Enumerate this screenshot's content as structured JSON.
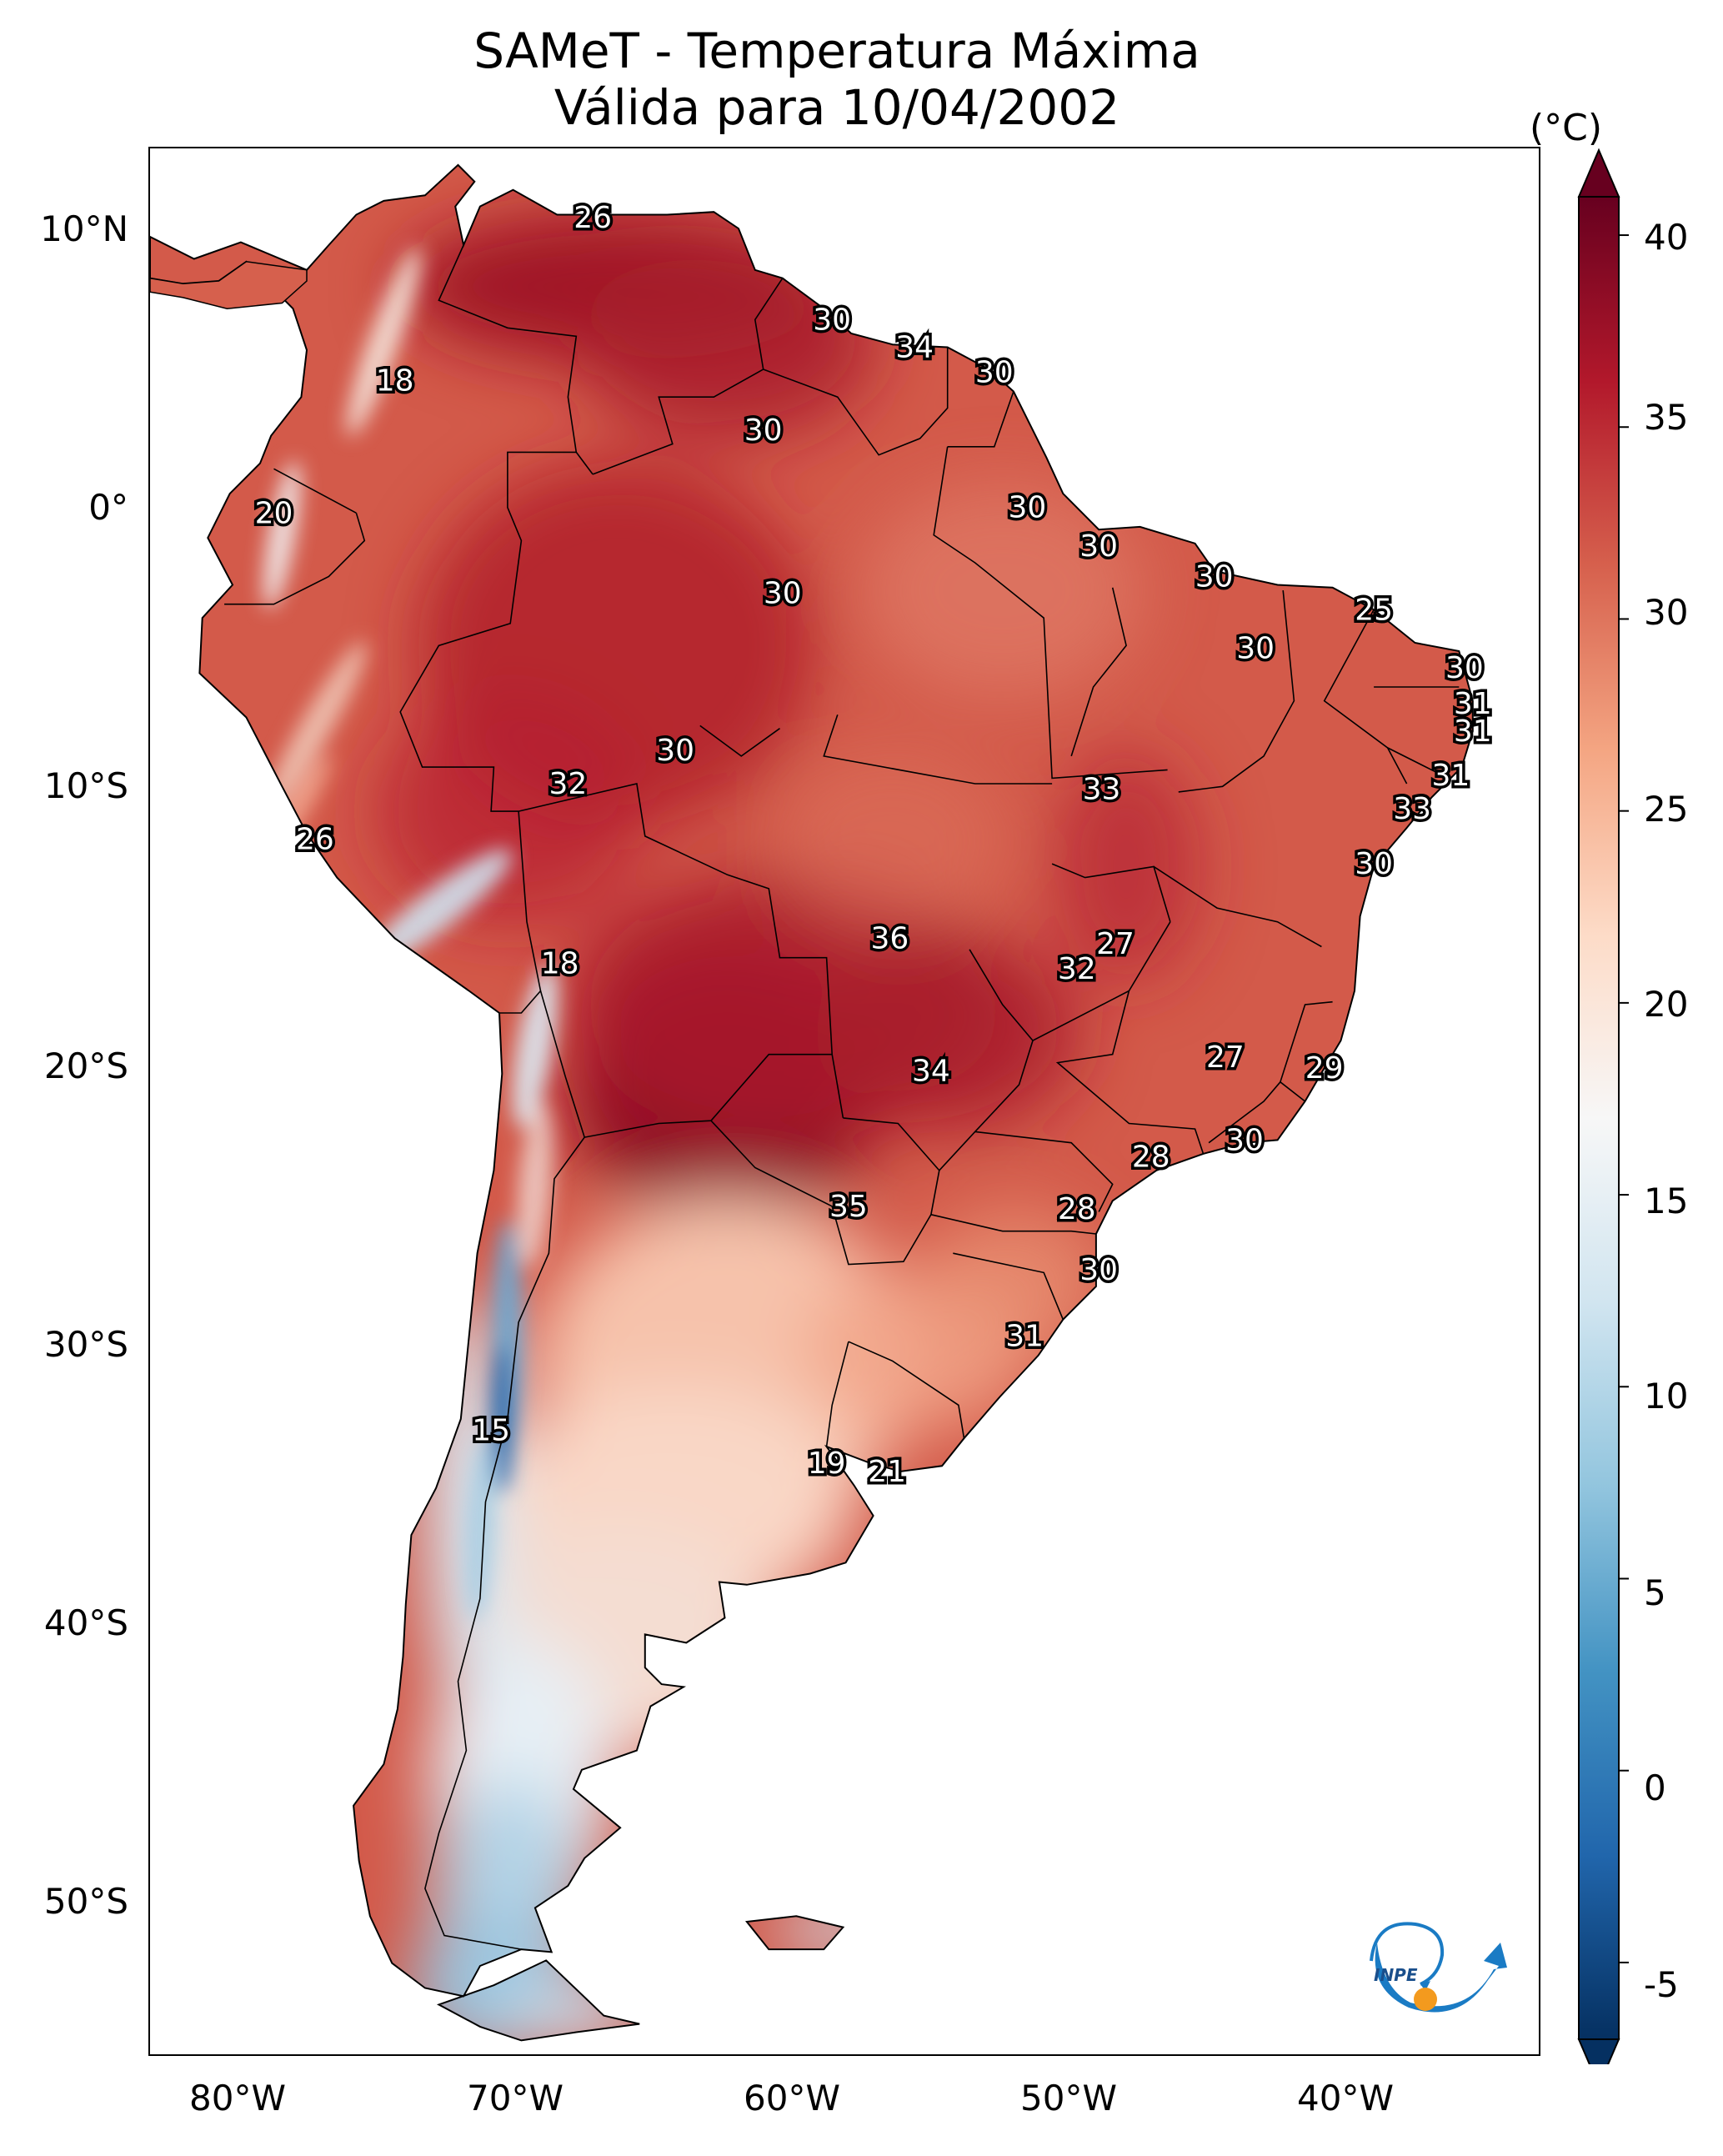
{
  "title": {
    "line1": "SAMeT - Temperatura Máxima",
    "line2": "Válida para 10/04/2002"
  },
  "axes": {
    "lat_ticks": [
      "10°N",
      "0°",
      "10°S",
      "20°S",
      "30°S",
      "40°S",
      "50°S"
    ],
    "lon_ticks": [
      "80°W",
      "70°W",
      "60°W",
      "50°W",
      "40°W"
    ]
  },
  "colorbar": {
    "unit": "(°C)",
    "ticks": [
      "40",
      "35",
      "30",
      "25",
      "20",
      "15",
      "10",
      "5",
      "0",
      "-5"
    ],
    "min": -7,
    "max": 41,
    "colormap": "RdBu_r",
    "colors": [
      "#053061",
      "#2166ac",
      "#4393c3",
      "#92c5de",
      "#d1e5f0",
      "#f7f7f7",
      "#fddbc7",
      "#f4a582",
      "#d6604d",
      "#b2182b",
      "#67001f"
    ]
  },
  "logo": {
    "text": "INPE",
    "arc_color": "#1a7bc4",
    "dot_color": "#f39a1e"
  },
  "city_labels": [
    {
      "value": "26",
      "lon": -66.9,
      "lat": 10.5
    },
    {
      "value": "30",
      "lon": -58.2,
      "lat": 6.8
    },
    {
      "value": "34",
      "lon": -55.2,
      "lat": 5.8
    },
    {
      "value": "30",
      "lon": -52.3,
      "lat": 4.9
    },
    {
      "value": "18",
      "lon": -74.1,
      "lat": 4.6
    },
    {
      "value": "30",
      "lon": -60.7,
      "lat": 2.8
    },
    {
      "value": "20",
      "lon": -78.5,
      "lat": -0.2
    },
    {
      "value": "30",
      "lon": -51.1,
      "lat": 0.0
    },
    {
      "value": "30",
      "lon": -48.5,
      "lat": -1.4
    },
    {
      "value": "30",
      "lon": -44.3,
      "lat": -2.5
    },
    {
      "value": "30",
      "lon": -60.0,
      "lat": -3.1
    },
    {
      "value": "25",
      "lon": -38.5,
      "lat": -3.7
    },
    {
      "value": "30",
      "lon": -42.8,
      "lat": -5.1
    },
    {
      "value": "30",
      "lon": -35.2,
      "lat": -5.8
    },
    {
      "value": "31",
      "lon": -34.9,
      "lat": -7.1
    },
    {
      "value": "31",
      "lon": -34.9,
      "lat": -8.1
    },
    {
      "value": "30",
      "lon": -63.9,
      "lat": -8.8
    },
    {
      "value": "31",
      "lon": -35.7,
      "lat": -9.7
    },
    {
      "value": "32",
      "lon": -67.8,
      "lat": -10.0
    },
    {
      "value": "33",
      "lon": -48.4,
      "lat": -10.2
    },
    {
      "value": "33",
      "lon": -37.1,
      "lat": -10.9
    },
    {
      "value": "26",
      "lon": -77.0,
      "lat": -12.0
    },
    {
      "value": "30",
      "lon": -38.5,
      "lat": -12.9
    },
    {
      "value": "36",
      "lon": -56.1,
      "lat": -15.6
    },
    {
      "value": "27",
      "lon": -47.9,
      "lat": -15.8
    },
    {
      "value": "32",
      "lon": -49.3,
      "lat": -16.7
    },
    {
      "value": "18",
      "lon": -68.1,
      "lat": -16.5
    },
    {
      "value": "27",
      "lon": -43.9,
      "lat": -19.9
    },
    {
      "value": "34",
      "lon": -54.6,
      "lat": -20.4
    },
    {
      "value": "29",
      "lon": -40.3,
      "lat": -20.3
    },
    {
      "value": "30",
      "lon": -43.2,
      "lat": -22.9
    },
    {
      "value": "28",
      "lon": -46.6,
      "lat": -23.5
    },
    {
      "value": "35",
      "lon": -57.6,
      "lat": -25.3
    },
    {
      "value": "28",
      "lon": -49.3,
      "lat": -25.4
    },
    {
      "value": "30",
      "lon": -48.5,
      "lat": -27.6
    },
    {
      "value": "31",
      "lon": -51.2,
      "lat": -30.0
    },
    {
      "value": "15",
      "lon": -70.6,
      "lat": -33.4
    },
    {
      "value": "19",
      "lon": -58.4,
      "lat": -34.6
    },
    {
      "value": "21",
      "lon": -56.2,
      "lat": -34.9
    }
  ]
}
